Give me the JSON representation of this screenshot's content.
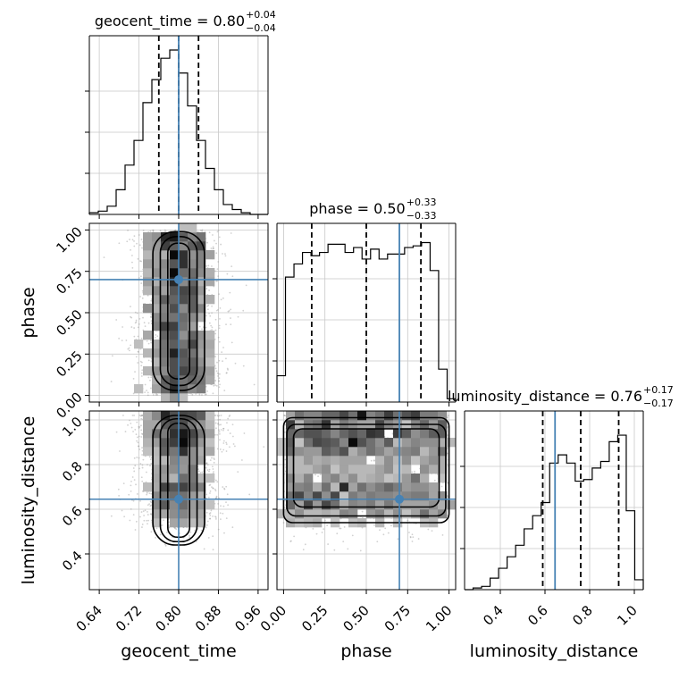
{
  "chart_data": {
    "type": "corner",
    "truth_color": "#4682b4",
    "parameters": [
      {
        "name": "geocent_time",
        "label": "geocent_time",
        "range": [
          0.62,
          0.98
        ],
        "truth": 0.8,
        "median": 0.8,
        "q_lo": 0.76,
        "q_hi": 0.84,
        "title_main": "geocent_time = 0.80",
        "title_plus": "+0.04",
        "title_minus": "−0.04",
        "ticks": [
          0.64,
          0.72,
          0.8,
          0.88,
          0.96
        ],
        "tick_labels": [
          "0.64",
          "0.72",
          "0.80",
          "0.88",
          "0.96"
        ],
        "hist_counts": [
          0.01,
          0.02,
          0.05,
          0.15,
          0.3,
          0.45,
          0.68,
          0.82,
          0.95,
          1.0,
          0.86,
          0.66,
          0.45,
          0.28,
          0.15,
          0.06,
          0.03,
          0.01,
          0.0,
          0.0
        ]
      },
      {
        "name": "phase",
        "label": "phase",
        "range": [
          -0.04,
          1.04
        ],
        "truth": 0.7,
        "median": 0.5,
        "q_lo": 0.17,
        "q_hi": 0.83,
        "title_main": "phase = 0.50",
        "title_plus": "+0.33",
        "title_minus": "−0.33",
        "ticks": [
          0.0,
          0.25,
          0.5,
          0.75,
          1.0
        ],
        "tick_labels": [
          "0.00",
          "0.25",
          "0.50",
          "0.75",
          "1.00"
        ],
        "hist_counts": [
          0.16,
          0.76,
          0.84,
          0.91,
          0.89,
          0.91,
          0.96,
          0.96,
          0.91,
          0.94,
          0.87,
          0.93,
          0.87,
          0.9,
          0.9,
          0.94,
          0.95,
          0.97,
          0.8,
          0.2,
          0.02
        ]
      },
      {
        "name": "luminosity_distance",
        "label": "luminosity_distance",
        "range": [
          0.24,
          1.04
        ],
        "truth": 0.645,
        "median": 0.76,
        "q_lo": 0.59,
        "q_hi": 0.93,
        "title_main": "luminosity_distance = 0.76",
        "title_plus": "+0.17",
        "title_minus": "−0.17",
        "ticks": [
          0.4,
          0.6,
          0.8,
          1.0
        ],
        "tick_labels": [
          "0.4",
          "0.6",
          "0.8",
          "1.0"
        ],
        "hist_counts": [
          0.0,
          0.01,
          0.02,
          0.07,
          0.13,
          0.2,
          0.27,
          0.37,
          0.45,
          0.53,
          0.77,
          0.82,
          0.77,
          0.66,
          0.67,
          0.74,
          0.78,
          0.9,
          0.94,
          0.48,
          0.06
        ]
      }
    ],
    "axis_labels": {
      "x": [
        "geocent_time",
        "phase",
        "luminosity_distance"
      ],
      "y": [
        "phase",
        "luminosity_distance"
      ]
    },
    "y_tick_labels": {
      "phase": [
        "0.00",
        "0.25",
        "0.50",
        "0.75",
        "1.00"
      ],
      "luminosity_distance": [
        "0.4",
        "0.6",
        "0.8",
        "1.0"
      ]
    }
  }
}
